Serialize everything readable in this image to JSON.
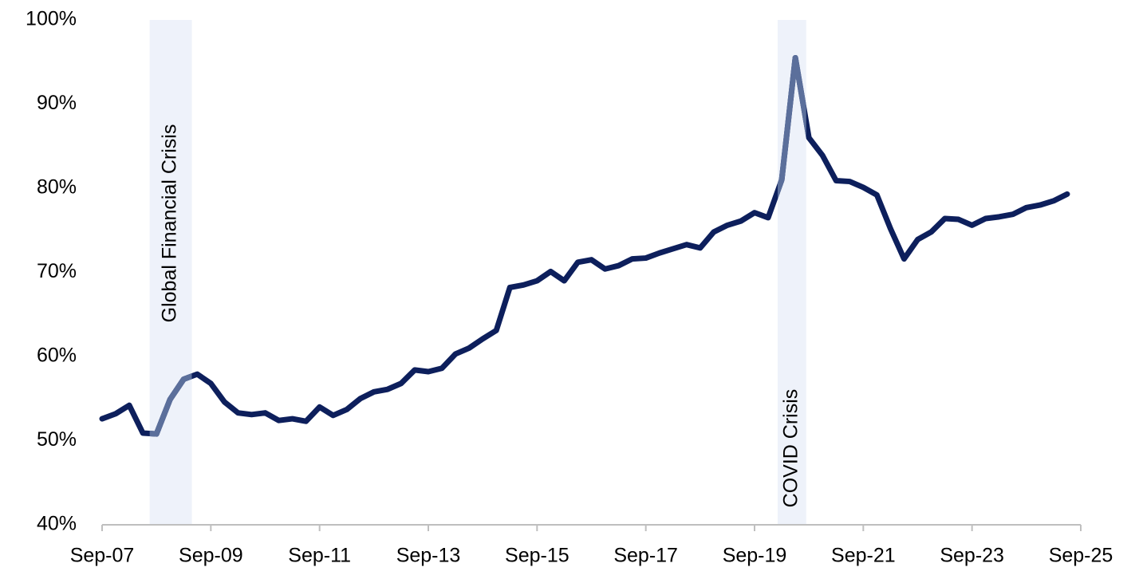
{
  "chart_data": {
    "type": "line",
    "categories": [
      "Sep-07",
      null,
      null,
      null,
      null,
      null,
      null,
      null,
      "Sep-09",
      null,
      null,
      null,
      null,
      null,
      null,
      null,
      "Sep-11",
      null,
      null,
      null,
      null,
      null,
      null,
      null,
      "Sep-13",
      null,
      null,
      null,
      null,
      null,
      null,
      null,
      "Sep-15",
      null,
      null,
      null,
      null,
      null,
      null,
      null,
      "Sep-17",
      null,
      null,
      null,
      null,
      null,
      null,
      null,
      "Sep-19",
      null,
      null,
      null,
      null,
      null,
      null,
      null,
      "Sep-21",
      null,
      null,
      null,
      null,
      null,
      null,
      null,
      "Sep-23",
      null,
      null,
      null,
      null,
      null,
      null,
      null,
      "Sep-25"
    ],
    "series": [
      {
        "color": "#0d1f5c",
        "highlight_color": "#5b6f9b",
        "values": [
          52.6,
          53.2,
          54.2,
          50.9,
          50.8,
          54.9,
          57.3,
          57.9,
          56.8,
          54.6,
          53.3,
          53.1,
          53.3,
          52.4,
          52.6,
          52.3,
          54.0,
          53.0,
          53.7,
          55.0,
          55.8,
          56.1,
          56.8,
          58.4,
          58.2,
          58.6,
          60.3,
          61.0,
          62.1,
          63.1,
          68.2,
          68.5,
          69.0,
          70.1,
          69.0,
          71.2,
          71.5,
          70.4,
          70.8,
          71.6,
          71.7,
          72.3,
          72.8,
          73.3,
          72.9,
          74.8,
          75.6,
          76.1,
          77.1,
          76.5,
          81.0,
          95.5,
          86.0,
          83.9,
          80.9,
          80.8,
          80.1,
          79.2,
          75.2,
          71.6,
          73.9,
          74.8,
          76.4,
          76.3,
          75.6,
          76.4,
          76.6,
          76.9,
          77.7,
          78.0,
          78.5,
          79.3,
          null
        ]
      }
    ],
    "shaded_regions": [
      {
        "label": "Global Financial Crisis",
        "start": 3.5,
        "end": 6.6,
        "color": "#eef2fa"
      },
      {
        "label": "COVID Crisis",
        "start": 49.7,
        "end": 51.8,
        "color": "#eef2fa"
      }
    ],
    "ylim": [
      40,
      100
    ],
    "yticks": [
      {
        "value": 40,
        "label": "40%"
      },
      {
        "value": 50,
        "label": "50%"
      },
      {
        "value": 60,
        "label": "60%"
      },
      {
        "value": 70,
        "label": "70%"
      },
      {
        "value": 80,
        "label": "80%"
      },
      {
        "value": 90,
        "label": "90%"
      },
      {
        "value": 100,
        "label": "100%"
      }
    ],
    "grid": false
  }
}
